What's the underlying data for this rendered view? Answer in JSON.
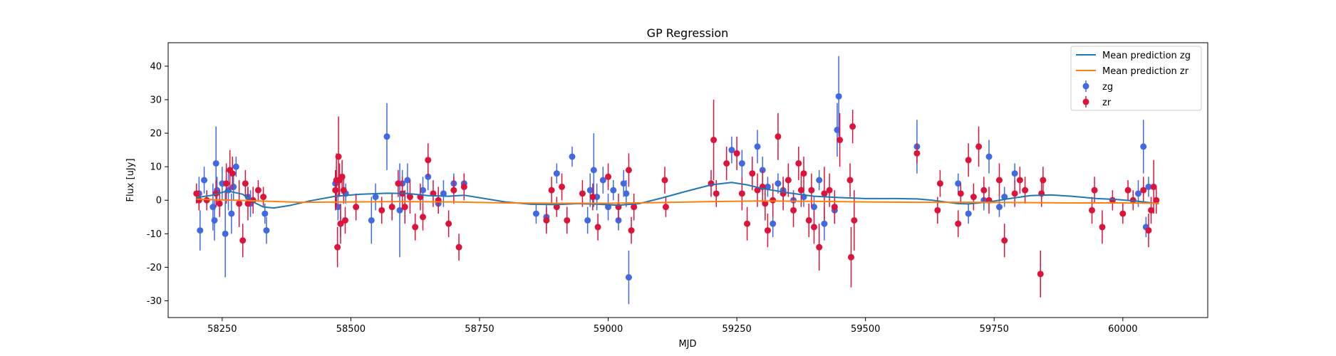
{
  "chart_data": {
    "type": "scatter",
    "title": "GP Regression",
    "xlabel": "MJD",
    "ylabel": "Flux [uJy]",
    "xlim": [
      58145,
      60165
    ],
    "ylim": [
      -35,
      47
    ],
    "xticks": [
      58250,
      58500,
      58750,
      59000,
      59250,
      59500,
      59750,
      60000
    ],
    "yticks": [
      -30,
      -20,
      -10,
      0,
      10,
      20,
      30,
      40
    ],
    "legend_position": "top-right",
    "colors": {
      "zg_line": "#1f77b4",
      "zr_line": "#ff7f0e",
      "zg_points": "#4169e1",
      "zr_points": "#dc143c"
    },
    "lines": [
      {
        "name": "Mean prediction zg",
        "x": [
          58200,
          58230,
          58260,
          58290,
          58310,
          58330,
          58350,
          58380,
          58420,
          58470,
          58520,
          58570,
          58610,
          58650,
          58690,
          58720,
          58760,
          58800,
          58850,
          58900,
          58940,
          58980,
          59020,
          59060,
          59100,
          59150,
          59200,
          59240,
          59270,
          59300,
          59350,
          59400,
          59450,
          59500,
          59560,
          59600,
          59630,
          59660,
          59680,
          59700,
          59740,
          59780,
          59820,
          59860,
          59900,
          59950,
          59990,
          60030,
          60070
        ],
        "y": [
          0.8,
          1.5,
          2.8,
          1.8,
          -0.5,
          -2.0,
          -2.3,
          -1.6,
          -0.2,
          1.2,
          1.8,
          2.1,
          2.0,
          1.4,
          1.2,
          1.5,
          0.5,
          -0.5,
          -1.2,
          -1.3,
          -1.0,
          -1.2,
          -1.5,
          -1.0,
          0.5,
          2.6,
          4.6,
          5.3,
          4.6,
          3.5,
          2.2,
          1.2,
          0.8,
          0.5,
          0.5,
          0.4,
          0.0,
          -0.6,
          -1.0,
          -1.1,
          -0.5,
          0.5,
          1.4,
          1.6,
          1.2,
          0.5,
          0.2,
          -0.3,
          -1.0
        ]
      },
      {
        "name": "Mean prediction zr",
        "x": [
          58200,
          58300,
          58400,
          58500,
          58600,
          58700,
          58800,
          58900,
          59000,
          59100,
          59200,
          59300,
          59400,
          59500,
          59600,
          59700,
          59800,
          59900,
          60000,
          60070
        ],
        "y": [
          0.3,
          -0.1,
          -0.6,
          -0.5,
          -0.4,
          -0.5,
          -0.8,
          -0.9,
          -0.9,
          -0.7,
          -0.4,
          -0.2,
          -0.3,
          -0.5,
          -0.6,
          -0.6,
          -0.7,
          -0.8,
          -0.8,
          -0.9
        ]
      }
    ],
    "series": [
      {
        "name": "zg",
        "x": [
          58205,
          58207,
          58215,
          58232,
          58235,
          58238,
          58240,
          58250,
          58256,
          58262,
          58268,
          58272,
          58277,
          58300,
          58305,
          58333,
          58336,
          58470,
          58475,
          58480,
          58490,
          58540,
          58548,
          58570,
          58595,
          58600,
          58610,
          58640,
          58650,
          58670,
          58680,
          58700,
          58720,
          58860,
          58880,
          58900,
          58930,
          58960,
          58965,
          58972,
          58978,
          58990,
          59000,
          59010,
          59020,
          59030,
          59035,
          59040,
          59240,
          59260,
          59290,
          59300,
          59310,
          59320,
          59330,
          59340,
          59360,
          59380,
          59400,
          59410,
          59420,
          59440,
          59445,
          59448,
          59600,
          59680,
          59700,
          59730,
          59740,
          59760,
          59770,
          59790,
          60030,
          60040,
          60045,
          60050
        ],
        "y": [
          2,
          -9,
          6,
          -2,
          -6,
          11,
          3,
          5,
          -10,
          3,
          -4,
          4,
          10,
          1,
          -1,
          -4,
          -9,
          5,
          -2,
          -7,
          2,
          -6,
          1,
          19,
          -3,
          5,
          6,
          3,
          7,
          -1,
          2,
          5,
          5,
          -4,
          -5,
          8,
          13,
          -6,
          3,
          9,
          1,
          6,
          -2,
          3,
          -6,
          5,
          2,
          -23,
          15,
          11,
          16,
          9,
          4,
          -7,
          5,
          3,
          0,
          1,
          -2,
          6,
          -7,
          -3,
          21,
          31,
          16,
          5,
          -4,
          0,
          13,
          -2,
          1,
          8,
          2,
          16,
          -8,
          4
        ],
        "err": [
          5,
          6,
          4,
          7,
          6,
          11,
          4,
          5,
          13,
          6,
          6,
          4,
          3,
          3,
          4,
          3,
          4,
          3,
          4,
          4,
          3,
          7,
          4,
          10,
          14,
          4,
          5,
          4,
          4,
          3,
          4,
          3,
          3,
          3,
          4,
          3,
          3,
          4,
          5,
          11,
          4,
          4,
          4,
          3,
          3,
          4,
          4,
          8,
          4,
          4,
          5,
          4,
          3,
          4,
          3,
          3,
          3,
          3,
          3,
          3,
          5,
          4,
          8,
          12,
          8,
          3,
          3,
          3,
          5,
          3,
          3,
          3,
          4,
          8,
          3,
          3
        ]
      },
      {
        "name": "zr",
        "x": [
          58200,
          58205,
          58220,
          58238,
          58245,
          58258,
          58265,
          58270,
          58283,
          58290,
          58295,
          58300,
          58310,
          58320,
          58330,
          58470,
          58472,
          58474,
          58476,
          58478,
          58480,
          58483,
          58486,
          58489,
          58510,
          58560,
          58580,
          58592,
          58600,
          58605,
          58615,
          58625,
          58635,
          58640,
          58650,
          58660,
          58670,
          58690,
          58700,
          58710,
          58720,
          58880,
          58890,
          58900,
          58910,
          58920,
          58950,
          58970,
          58980,
          59000,
          59020,
          59040,
          59045,
          59050,
          59110,
          59112,
          59200,
          59205,
          59210,
          59230,
          59250,
          59260,
          59270,
          59280,
          59290,
          59300,
          59305,
          59310,
          59320,
          59330,
          59340,
          59350,
          59360,
          59370,
          59375,
          59380,
          59390,
          59395,
          59400,
          59410,
          59420,
          59430,
          59440,
          59450,
          59470,
          59472,
          59475,
          59478,
          59600,
          59640,
          59645,
          59680,
          59685,
          59700,
          59710,
          59720,
          59730,
          59740,
          59760,
          59770,
          59790,
          59800,
          59810,
          59840,
          59842,
          59845,
          59940,
          59945,
          59960,
          59980,
          60000,
          60010,
          60020,
          60040,
          60050,
          60055,
          60060,
          60065
        ],
        "y": [
          2,
          0,
          0,
          2,
          -1,
          5,
          9,
          8,
          -1,
          -12,
          5,
          -1,
          0,
          3,
          1,
          3,
          6,
          -14,
          13,
          6,
          -7,
          7,
          3,
          -6,
          -2,
          -3,
          -2,
          5,
          2,
          -2,
          1,
          -8,
          1,
          -5,
          12,
          2,
          0,
          -7,
          3,
          -14,
          4,
          -6,
          3,
          -2,
          4,
          -6,
          2,
          1,
          -8,
          7,
          -2,
          9,
          -9,
          -2,
          6,
          -2,
          5,
          18,
          2,
          11,
          14,
          2,
          -7,
          8,
          3,
          4,
          -1,
          -9,
          0,
          19,
          2,
          6,
          -3,
          11,
          3,
          8,
          -6,
          3,
          -8,
          -14,
          2,
          3,
          -2,
          18,
          6,
          -17,
          22,
          -6,
          14,
          -3,
          5,
          -7,
          2,
          12,
          1,
          16,
          3,
          0,
          6,
          -12,
          2,
          6,
          3,
          -22,
          2,
          6,
          -3,
          3,
          -8,
          0,
          -4,
          3,
          0,
          3,
          -9,
          -3,
          4,
          0
        ],
        "err": [
          3,
          3,
          3,
          4,
          4,
          6,
          6,
          5,
          7,
          5,
          4,
          5,
          4,
          3,
          3,
          6,
          8,
          6,
          12,
          5,
          6,
          5,
          4,
          4,
          4,
          4,
          4,
          4,
          5,
          5,
          5,
          4,
          4,
          4,
          5,
          4,
          4,
          4,
          4,
          4,
          4,
          4,
          4,
          3,
          4,
          4,
          4,
          4,
          4,
          4,
          4,
          5,
          4,
          4,
          4,
          3,
          4,
          12,
          4,
          5,
          5,
          5,
          5,
          5,
          5,
          5,
          5,
          5,
          5,
          7,
          5,
          5,
          5,
          5,
          5,
          5,
          5,
          5,
          5,
          7,
          8,
          5,
          5,
          8,
          5,
          9,
          5,
          9,
          3,
          4,
          4,
          4,
          3,
          5,
          4,
          6,
          4,
          4,
          5,
          5,
          4,
          4,
          4,
          7,
          4,
          4,
          4,
          4,
          5,
          3,
          3,
          3,
          3,
          4,
          5,
          4,
          8,
          4
        ]
      }
    ]
  }
}
